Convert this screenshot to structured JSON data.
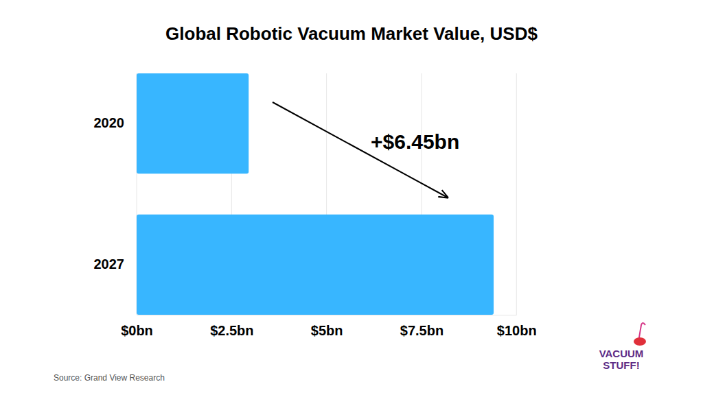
{
  "chart_data": {
    "type": "bar",
    "title": "Global Robotic Vacuum Market Value, USD$",
    "orientation": "horizontal",
    "categories": [
      "2020",
      "2027"
    ],
    "values": [
      2.95,
      9.4
    ],
    "color": "#38b6ff",
    "xlim": [
      0,
      10
    ],
    "xticks": [
      {
        "value": 0,
        "label": "$0bn"
      },
      {
        "value": 2.5,
        "label": "$2.5bn"
      },
      {
        "value": 5,
        "label": "$5bn"
      },
      {
        "value": 7.5,
        "label": "$7.5bn"
      },
      {
        "value": 10,
        "label": "$10bn"
      }
    ],
    "grid": true,
    "annotations": [
      "+$6.45bn"
    ],
    "source": "Source: Grand View Research",
    "logo": [
      "VACUUM",
      "STUFF!"
    ]
  }
}
